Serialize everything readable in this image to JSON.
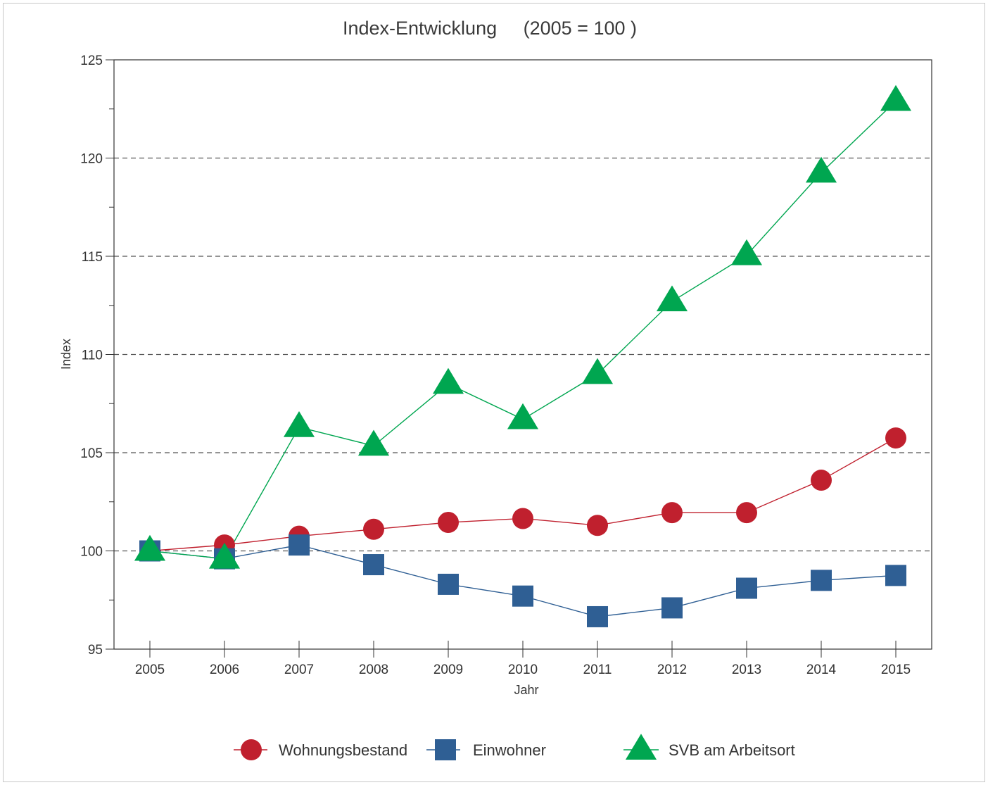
{
  "colors": {
    "wohnungsbestand": "#c0202e",
    "einwohner": "#2f5f94",
    "svb": "#00a650",
    "axis": "#333333",
    "grid": "#555555",
    "frame": "#c8c8c8"
  },
  "chart_data": {
    "type": "line",
    "title_main": "Index-Entwicklung",
    "title_paren": "(2005 = 100 )",
    "xlabel": "Jahr",
    "ylabel": "Index",
    "x": [
      "2005",
      "2006",
      "2007",
      "2008",
      "2009",
      "2010",
      "2011",
      "2012",
      "2013",
      "2014",
      "2015"
    ],
    "ylim": [
      95,
      125
    ],
    "yticks": [
      "95",
      "100",
      "105",
      "110",
      "115",
      "120",
      "125"
    ],
    "grid": "horizontal dashed at major ticks",
    "legend_position": "bottom",
    "series": [
      {
        "name": "Wohnungsbestand",
        "marker": "circle",
        "color_key": "wohnungsbestand",
        "values": [
          100.0,
          100.3,
          100.75,
          101.1,
          101.45,
          101.65,
          101.3,
          101.95,
          101.95,
          103.6,
          105.75
        ]
      },
      {
        "name": "Einwohner",
        "marker": "square",
        "color_key": "einwohner",
        "values": [
          100.0,
          99.6,
          100.3,
          99.3,
          98.3,
          97.7,
          96.65,
          97.1,
          98.1,
          98.5,
          98.75
        ]
      },
      {
        "name": "SVB am Arbeitsort",
        "marker": "triangle",
        "color_key": "svb",
        "values": [
          100.0,
          99.6,
          106.3,
          105.35,
          108.5,
          106.7,
          109.0,
          112.7,
          115.05,
          119.25,
          122.9
        ]
      }
    ]
  }
}
